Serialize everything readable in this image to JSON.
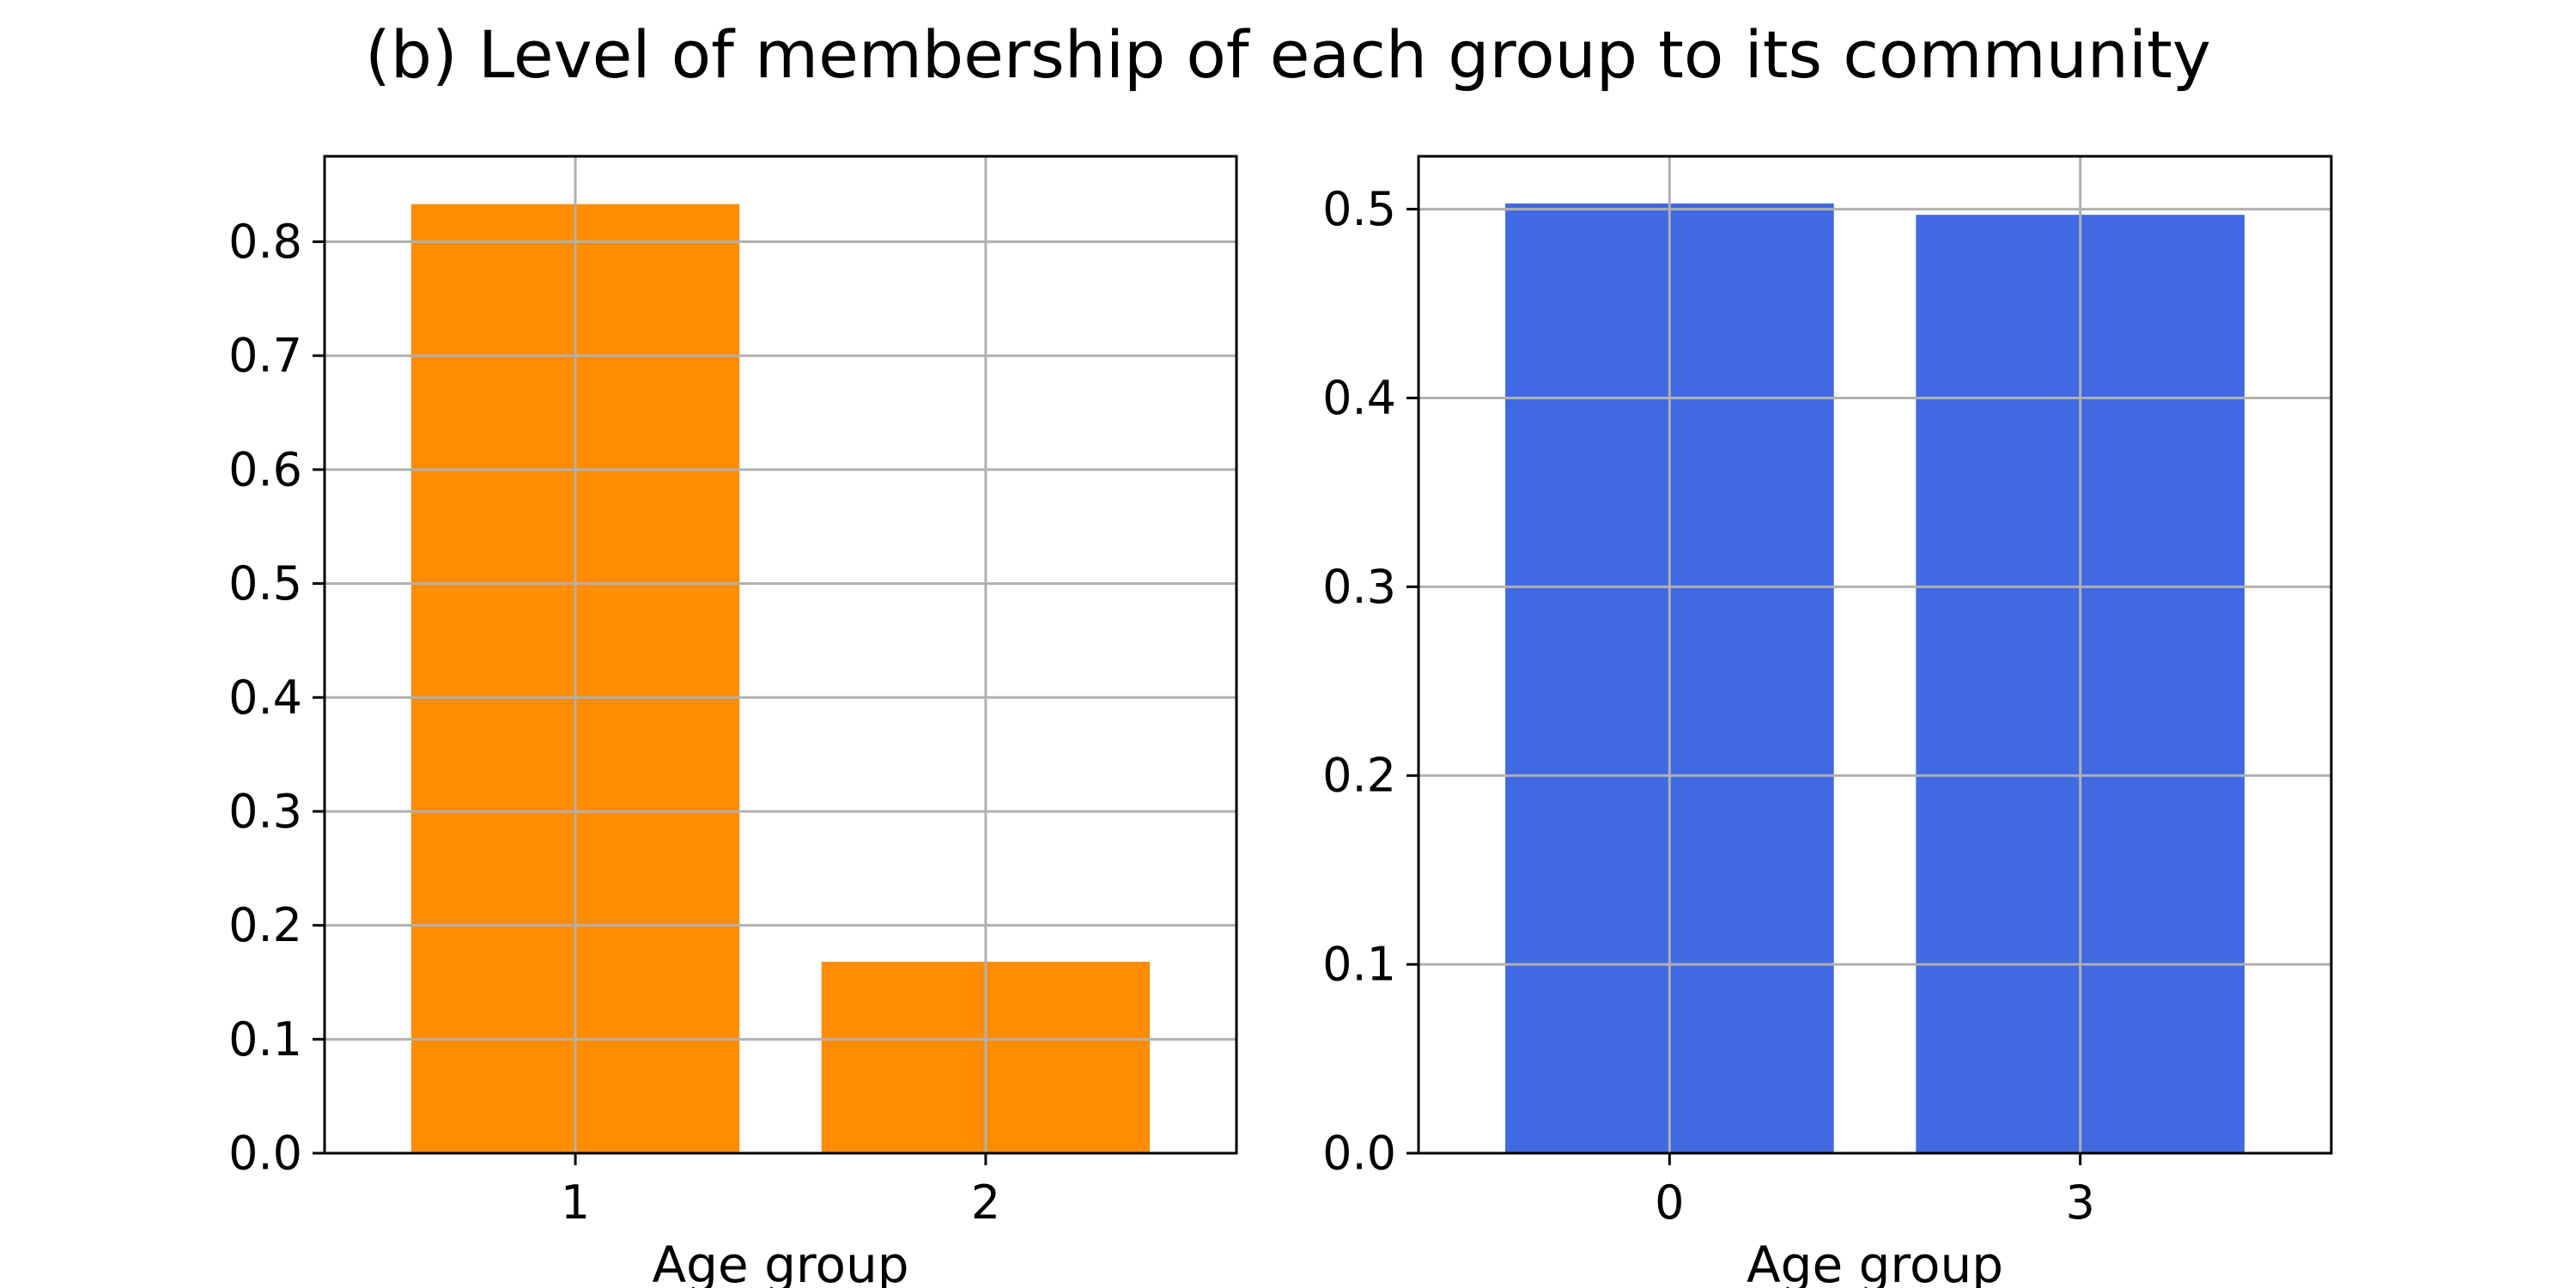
{
  "figure": {
    "title": "(b) Level of membership of each group to its community"
  },
  "chart_data": [
    {
      "type": "bar",
      "categories": [
        "1",
        "2"
      ],
      "values": [
        0.833,
        0.168
      ],
      "xlabel": "Age group",
      "ylabel": "",
      "ylim": [
        0,
        0.875
      ],
      "yticks": [
        "0.0",
        "0.1",
        "0.2",
        "0.3",
        "0.4",
        "0.5",
        "0.6",
        "0.7",
        "0.8"
      ],
      "color": "#FF8C00",
      "grid": true
    },
    {
      "type": "bar",
      "categories": [
        "0",
        "3"
      ],
      "values": [
        0.503,
        0.497
      ],
      "xlabel": "Age group",
      "ylabel": "",
      "ylim": [
        0,
        0.528
      ],
      "yticks": [
        "0.0",
        "0.1",
        "0.2",
        "0.3",
        "0.4",
        "0.5"
      ],
      "color": "#4169E1",
      "grid": true
    }
  ]
}
